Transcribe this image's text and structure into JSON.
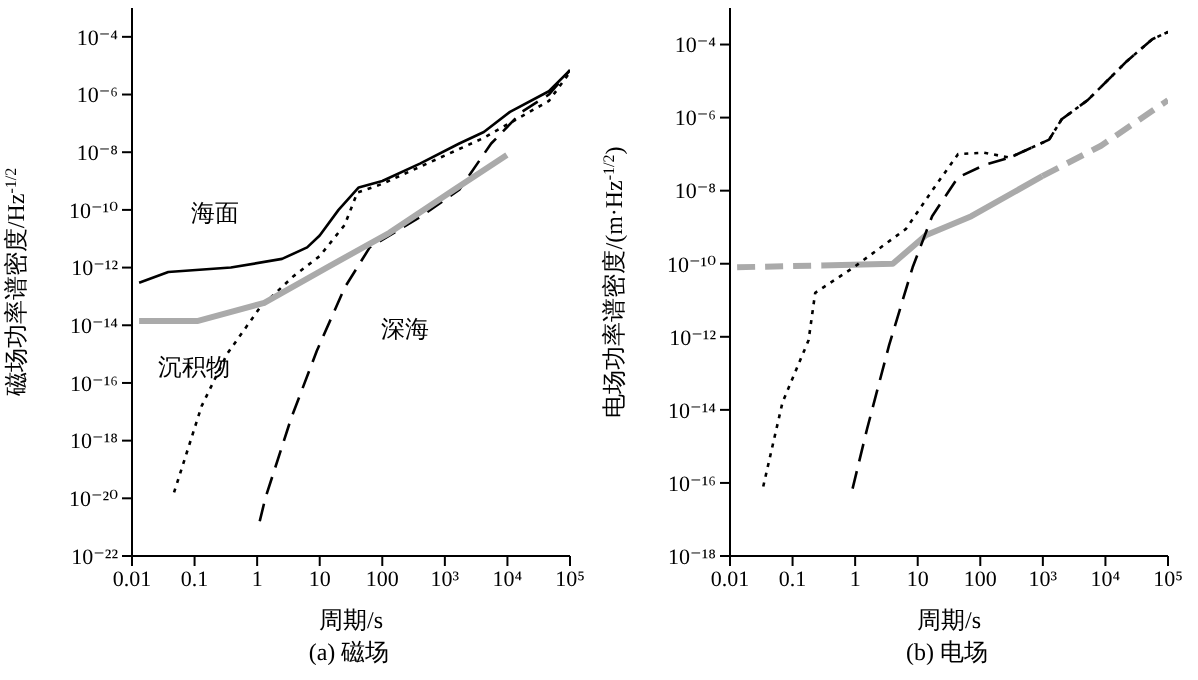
{
  "chart_data": [
    {
      "type": "line",
      "title": "(a) 磁场",
      "xlabel": "周期/s",
      "ylabel": "磁场功率谱密度/Hz$^{-1/2}$",
      "log": "xy",
      "xlim": [
        0.01,
        100000
      ],
      "xticks": [
        0.01,
        0.1,
        1,
        10,
        100,
        {
          "value": 1000,
          "label": "10³"
        },
        {
          "value": 10000,
          "label": "10⁴"
        },
        {
          "value": 100000,
          "label": "10⁵"
        }
      ],
      "ylim": [
        1e-22,
        0.001
      ],
      "yticks": [
        {
          "value": 1e-22,
          "label": "10⁻²²"
        },
        {
          "value": 1e-20,
          "label": "10⁻²⁰"
        },
        {
          "value": 1e-18,
          "label": "10⁻¹⁸"
        },
        {
          "value": 1e-16,
          "label": "10⁻¹⁶"
        },
        {
          "value": 1e-14,
          "label": "10⁻¹⁴"
        },
        {
          "value": 1e-12,
          "label": "10⁻¹²"
        },
        {
          "value": 1e-10,
          "label": "10⁻¹⁰"
        },
        {
          "value": 1e-08,
          "label": "10⁻⁸"
        },
        {
          "value": 1e-06,
          "label": "10⁻⁶"
        },
        {
          "value": 0.0001,
          "label": "10⁻⁴"
        }
      ],
      "series": [
        {
          "name": "海面",
          "color": "#000000",
          "line_style": "solid",
          "x": [
            0.013,
            0.038,
            0.38,
            2.5,
            6.3,
            10,
            20,
            42,
            100,
            400,
            1700,
            4200,
            11000,
            46000,
            100000
          ],
          "values": [
            3e-13,
            7e-13,
            1e-12,
            2e-12,
            5e-12,
            1.3e-11,
            1e-10,
            6e-10,
            1e-09,
            4e-09,
            2e-08,
            5e-08,
            2.5e-07,
            1.3e-06,
            7e-06
          ]
        },
        {
          "name": "沉积物",
          "color": "#000000",
          "line_style": "dotted",
          "x": [
            0.047,
            0.13,
            0.33,
            1.1,
            3.8,
            10,
            25,
            40,
            100,
            4000,
            46000,
            100000
          ],
          "values": [
            1.6e-20,
            1.6e-17,
            1e-15,
            4e-14,
            5e-13,
            2.5e-12,
            3e-11,
            4e-10,
            8e-10,
            3e-08,
            6e-07,
            6e-06
          ]
        },
        {
          "name": "深海",
          "color": "#000000",
          "line_style": "dashed",
          "x": [
            1.1,
            1.35,
            3.5,
            9,
            25,
            63,
            420,
            1700,
            5500,
            17000,
            46000,
            100000
          ],
          "values": [
            1.6e-21,
            1e-20,
            6e-18,
            1.3e-15,
            2e-13,
            5e-12,
            6e-11,
            5e-10,
            2e-08,
            2.5e-07,
            1e-06,
            7e-06
          ]
        },
        {
          "color": "#aaaaaa",
          "line_style": "solid",
          "x": [
            0.013,
            0.11,
            1.3,
            13,
            130,
            1400,
            9800
          ],
          "values": [
            1.4e-14,
            1.4e-14,
            6e-14,
            1e-12,
            1.6e-11,
            5e-10,
            8e-09
          ]
        }
      ]
    },
    {
      "type": "line",
      "title": "(b) 电场",
      "xlabel": "周期/s",
      "ylabel": "电场功率谱密度/(m·Hz$^{-1/2}$)",
      "log": "xy",
      "xlim": [
        0.01,
        100000
      ],
      "xticks": [
        0.01,
        0.1,
        1,
        10,
        100,
        {
          "value": 1000,
          "label": "10³"
        },
        {
          "value": 10000,
          "label": "10⁴"
        },
        {
          "value": 100000,
          "label": "10⁵"
        }
      ],
      "ylim": [
        1e-18,
        0.001
      ],
      "yticks": [
        {
          "value": 1e-18,
          "label": "10⁻¹⁸"
        },
        {
          "value": 1e-16,
          "label": "10⁻¹⁶"
        },
        {
          "value": 1e-14,
          "label": "10⁻¹⁴"
        },
        {
          "value": 1e-12,
          "label": "10⁻¹²"
        },
        {
          "value": 1e-10,
          "label": "10⁻¹⁰"
        },
        {
          "value": 1e-08,
          "label": "10⁻⁸"
        },
        {
          "value": 1e-06,
          "label": "10⁻⁶"
        },
        {
          "value": 0.0001,
          "label": "10⁻⁴"
        }
      ],
      "series": [
        {
          "color": "#aaaaaa",
          "line_style": "dashed",
          "x": [
            0.013,
            0.29
          ],
          "values": [
            8e-11,
            9e-11
          ]
        },
        {
          "color": "#aaaaaa",
          "line_style": "solid",
          "x": [
            0.29,
            4,
            13.5,
            72,
            980
          ],
          "values": [
            9e-11,
            1e-10,
            6e-10,
            2e-09,
            2.5e-08
          ]
        },
        {
          "color": "#aaaaaa",
          "line_style": "dashed",
          "x": [
            980,
            8500,
            100000
          ],
          "values": [
            2.5e-08,
            1.7e-07,
            3e-06
          ]
        },
        {
          "color": "#000000",
          "line_style": "dotted",
          "x": [
            0.034,
            0.069,
            0.18,
            0.23,
            0.95,
            6.5,
            17,
            44,
            115,
            295,
            1260,
            2000,
            5200,
            22000,
            56000,
            100000
          ],
          "values": [
            8e-17,
            1.6e-14,
            8e-13,
            1.6e-11,
            8e-11,
            9e-10,
            1e-08,
            1e-07,
            1.1e-07,
            8e-08,
            2.5e-07,
            9e-07,
            3e-06,
            3.5e-05,
            0.00014,
            0.00022
          ]
        },
        {
          "color": "#000000",
          "line_style": "dashed",
          "x": [
            0.91,
            1.55,
            3.5,
            8.3,
            17,
            44,
            115,
            295,
            1260,
            2000,
            5200,
            22000,
            56000,
            100000
          ],
          "values": [
            7e-17,
            3e-15,
            6e-13,
            8e-11,
            2e-09,
            2.3e-08,
            5e-08,
            8e-08,
            2.5e-07,
            9e-07,
            3e-06,
            3.5e-05,
            0.00014,
            0.00022
          ]
        }
      ]
    }
  ]
}
